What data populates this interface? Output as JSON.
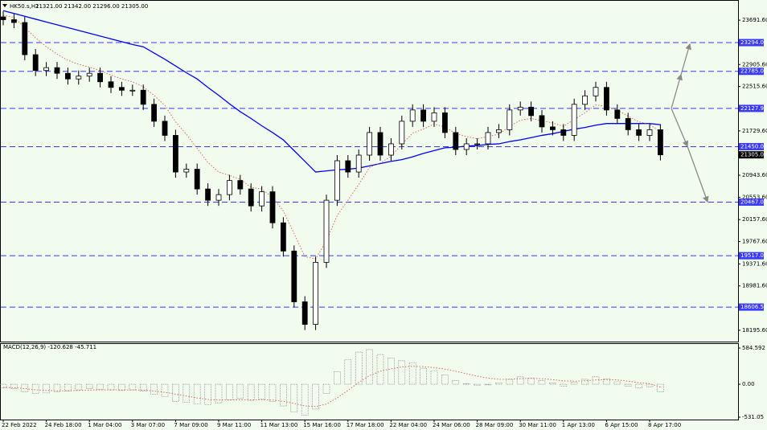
{
  "chart_data": [
    {
      "type": "candlestick",
      "title": "HK50.s,H1",
      "subtitle": "21321.00 21342.00 21296.00 21305.00",
      "categories": [
        "22 Feb 2022",
        null,
        null,
        null,
        "24 Feb 18:00",
        null,
        null,
        null,
        "1 Mar 04:00",
        null,
        null,
        null,
        "3 Mar 07:00",
        null,
        null,
        null,
        "7 Mar 09:00",
        null,
        null,
        null,
        "9 Mar 11:00",
        null,
        null,
        null,
        "11 Mar 13:00",
        null,
        null,
        null,
        "15 Mar 16:00",
        null,
        null,
        null,
        "17 Mar 18:00",
        null,
        null,
        null,
        "22 Mar 04:00",
        null,
        null,
        null,
        "24 Mar 06:00",
        null,
        null,
        null,
        "28 Mar 09:00",
        null,
        null,
        null,
        "30 Mar 11:00",
        null,
        null,
        null,
        "1 Apr 13:00",
        null,
        null,
        null,
        "6 Apr 15:00",
        null,
        null,
        null,
        "8 Apr 17:00",
        null
      ],
      "open": [
        23750,
        23700,
        23650,
        23080,
        22800,
        22850,
        22750,
        22650,
        22700,
        22750,
        22600,
        22500,
        22450,
        22450,
        22200,
        21900,
        21650,
        21000,
        21050,
        20700,
        20500,
        20600,
        20850,
        20700,
        20400,
        20650,
        20100,
        19600,
        18700,
        18300,
        19400,
        20500,
        21200,
        21000,
        21300,
        21700,
        21300,
        21500,
        21900,
        22100,
        21900,
        22050,
        21700,
        21400,
        21500,
        21500,
        21700,
        21750,
        22100,
        22150,
        22000,
        21800,
        21750,
        21650,
        22200,
        22350,
        22500,
        22100,
        21950,
        21750,
        21650,
        21750
      ],
      "high": [
        23850,
        23800,
        23750,
        23180,
        22950,
        22950,
        22850,
        22800,
        22850,
        22850,
        22700,
        22600,
        22550,
        22550,
        22300,
        22000,
        21750,
        21150,
        21150,
        20800,
        20700,
        20950,
        20950,
        20800,
        20750,
        20750,
        20200,
        19700,
        18800,
        19500,
        20600,
        21300,
        21300,
        21400,
        21800,
        21800,
        21600,
        22000,
        22200,
        22200,
        22150,
        22150,
        21800,
        21600,
        21600,
        21800,
        21850,
        22200,
        22250,
        22250,
        22100,
        21900,
        21850,
        22300,
        22450,
        22600,
        22600,
        22200,
        22050,
        21850,
        21850,
        21850
      ],
      "low": [
        23600,
        23550,
        22980,
        22700,
        22700,
        22650,
        22550,
        22550,
        22600,
        22500,
        22400,
        22350,
        22350,
        22100,
        21800,
        21550,
        20900,
        20900,
        20600,
        20400,
        20400,
        20500,
        20600,
        20300,
        20300,
        20000,
        19500,
        18600,
        18200,
        18200,
        19300,
        20400,
        20900,
        20900,
        21200,
        21200,
        21200,
        21400,
        21800,
        21800,
        21800,
        21600,
        21300,
        21300,
        21400,
        21400,
        21600,
        21650,
        22000,
        21900,
        21700,
        21650,
        21550,
        21550,
        22100,
        22250,
        22000,
        21850,
        21650,
        21550,
        21550,
        21205
      ],
      "close": [
        23700,
        23650,
        23080,
        22800,
        22850,
        22750,
        22650,
        22700,
        22750,
        22600,
        22500,
        22450,
        22450,
        22200,
        21900,
        21650,
        21000,
        21050,
        20700,
        20500,
        20600,
        20850,
        20700,
        20400,
        20650,
        20100,
        19600,
        18700,
        18300,
        19400,
        20500,
        21200,
        21000,
        21300,
        21700,
        21300,
        21500,
        21900,
        22100,
        21900,
        22050,
        21700,
        21400,
        21500,
        21500,
        21700,
        21750,
        22100,
        22150,
        22000,
        21800,
        21750,
        21650,
        22200,
        22350,
        22500,
        22100,
        21950,
        21750,
        21650,
        21750,
        21305
      ],
      "overlays": [
        {
          "color": "#0000ff",
          "values": [
            23860,
            23810,
            23760,
            23710,
            23660,
            23610,
            23560,
            23510,
            23460,
            23410,
            23360,
            23310,
            23260,
            23220,
            23110,
            23000,
            22880,
            22760,
            22650,
            22500,
            22360,
            22210,
            22070,
            21950,
            21820,
            21700,
            21570,
            21380,
            21190,
            21000,
            21020,
            21040,
            21050,
            21070,
            21110,
            21150,
            21190,
            21220,
            21270,
            21330,
            21380,
            21430,
            21440,
            21460,
            21470,
            21490,
            21500,
            21540,
            21570,
            21610,
            21650,
            21680,
            21720,
            21760,
            21790,
            21830,
            21860,
            21860,
            21860,
            21860,
            21860,
            21840
          ]
        },
        {
          "color": "#e05a48",
          "dashed": true,
          "values": [
            23780,
            23740,
            23560,
            23380,
            23220,
            23090,
            22980,
            22910,
            22860,
            22800,
            22720,
            22650,
            22600,
            22510,
            22360,
            22180,
            21890,
            21670,
            21420,
            21170,
            21000,
            20940,
            20870,
            20730,
            20700,
            20550,
            20310,
            19910,
            19500,
            19460,
            19780,
            20230,
            20500,
            20780,
            21080,
            21160,
            21280,
            21490,
            21690,
            21760,
            21850,
            21800,
            21680,
            21630,
            21590,
            21630,
            21670,
            21810,
            21920,
            21950,
            21910,
            21870,
            21810,
            21930,
            22050,
            22190,
            22160,
            22100,
            21990,
            21890,
            21850,
            21700
          ]
        }
      ],
      "levels": [
        {
          "value": 23294,
          "label": "23294.00"
        },
        {
          "value": 22785,
          "label": "22785.00"
        },
        {
          "value": 22127.93,
          "label": "22127.93"
        },
        {
          "value": 21450,
          "label": "21450.00"
        },
        {
          "value": 20467,
          "label": "20467.00"
        },
        {
          "value": 19517,
          "label": "19517.00"
        },
        {
          "value": 18606.58,
          "label": "18606.58"
        }
      ],
      "level_color": "#3a3aff",
      "last_price": {
        "value": 21305,
        "label": "21305.00"
      },
      "ylim": [
        17995,
        24035
      ],
      "yticks": [
        {
          "value": 23691.6,
          "label": "23691.60"
        },
        {
          "value": 22905.6,
          "label": "22905.60"
        },
        {
          "value": 22515.6,
          "label": "22515.60"
        },
        {
          "value": 21729.6,
          "label": "21729.60"
        },
        {
          "value": 20943.6,
          "label": "20943.60"
        },
        {
          "value": 20553.6,
          "label": "20553.60"
        },
        {
          "value": 20157.6,
          "label": "20157.60"
        },
        {
          "value": 19767.6,
          "label": "19767.60"
        },
        {
          "value": 19371.6,
          "label": "19371.60"
        },
        {
          "value": 18981.6,
          "label": "18981.60"
        },
        {
          "value": 18195.6,
          "label": "18195.60"
        }
      ]
    },
    {
      "type": "bar",
      "title": "MACD(12,26,9) -120.628 -45.711",
      "color": "#707070",
      "values": [
        -60,
        -70,
        -120,
        -150,
        -140,
        -120,
        -110,
        -90,
        -70,
        -80,
        -90,
        -100,
        -90,
        -110,
        -160,
        -200,
        -280,
        -290,
        -320,
        -330,
        -300,
        -250,
        -230,
        -260,
        -240,
        -280,
        -350,
        -450,
        -500,
        -400,
        -150,
        200,
        400,
        520,
        560,
        480,
        420,
        380,
        350,
        260,
        220,
        150,
        60,
        10,
        -20,
        -10,
        20,
        80,
        120,
        100,
        60,
        20,
        -30,
        30,
        80,
        120,
        90,
        40,
        -30,
        -60,
        -40,
        -120
      ],
      "signal": {
        "color": "#e05a48",
        "values": [
          -50,
          -55,
          -70,
          -90,
          -100,
          -105,
          -105,
          -100,
          -95,
          -90,
          -90,
          -92,
          -92,
          -95,
          -110,
          -130,
          -160,
          -190,
          -220,
          -245,
          -255,
          -255,
          -250,
          -252,
          -250,
          -255,
          -275,
          -310,
          -350,
          -360,
          -320,
          -220,
          -100,
          30,
          140,
          210,
          250,
          280,
          290,
          285,
          270,
          245,
          210,
          170,
          130,
          100,
          80,
          80,
          90,
          95,
          90,
          75,
          55,
          50,
          55,
          70,
          75,
          70,
          50,
          25,
          10,
          -45
        ]
      },
      "ylim": [
        -570,
        650
      ],
      "yticks": [
        584.592,
        {
          "value": 0,
          "label": "0.00"
        },
        -531.05
      ]
    }
  ]
}
